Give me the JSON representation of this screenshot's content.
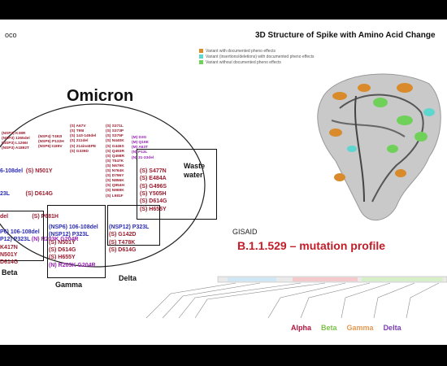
{
  "header": {
    "left_text": "oco"
  },
  "omicron_title": "Omicron",
  "omicron_small_cols": [
    [
      "(NSP3) K38R",
      "(NSP3) 1265del",
      "(NSP3) L1266I",
      "(NSP3) A1892T"
    ],
    [
      "(NSP4) T492I",
      "(NSP5) P132H",
      "(NSP6) I189V"
    ],
    [
      "(S) A67V",
      "(S) T95I",
      "(S) 143-145del",
      "(S) 211del",
      "(S) 214insEPE",
      "(S) G339D"
    ],
    [
      "(S) S371L",
      "(S) S373P",
      "(S) S375F",
      "(S) N440K",
      "(S) G446S",
      "(S) Q493R",
      "(S) Q498R",
      "(S) T547K",
      "(S) N679K",
      "(S) N764K",
      "(S) D796Y",
      "(S) N856K",
      "(S) Q954H",
      "(S) N969K",
      "(S) L981F"
    ],
    [
      "(M) D3G",
      "(M) Q19E",
      "(M) A63T",
      "(N) P13L",
      "(N) 31-33del"
    ]
  ],
  "omicron_cluster_left": [
    "6-108del",
    "(S) N501Y",
    "23L",
    "(S) D614G",
    "del",
    "(S) P681H",
    "(N) R203K G204R"
  ],
  "omicron_cluster_right": [
    "(S) S477N",
    "(S) E484A",
    "(S) G496S",
    "(S) Y505H",
    "(S) D614G",
    "(S) H655Y"
  ],
  "beta_lines": [
    "P6) 106-108del",
    "P12) P323L",
    "K417N",
    "N501Y",
    "D614G"
  ],
  "gamma_lines": [
    "(NSP6) 106-108del",
    "(NSP12) P323L",
    "(S) N501Y",
    "(S) D614G",
    "(S) H655Y",
    "(N) R203K G204R"
  ],
  "delta_lines": [
    "(NSP12) P323L",
    "(S) G142D",
    "(S) T478K",
    "(S) D614G"
  ],
  "labels": {
    "beta": "Beta",
    "gamma": "Gamma",
    "delta": "Delta",
    "waste": "Waste\nwater"
  },
  "structure": {
    "title": "3D Structure of Spike with Amino Acid Change",
    "legend": [
      {
        "text": "Variant with documented pheno effects",
        "color": "#d98a2b"
      },
      {
        "text": "Variant (insertions/deletions) with documented pheno effects",
        "color": "#5fd6cf"
      },
      {
        "text": "Variant without documented pheno effects",
        "color": "#6fd15a"
      }
    ]
  },
  "gisaid": "GISAID",
  "profile_title": "B.1.1.529 – mutation profile",
  "variant_legend": [
    {
      "name": "Alpha",
      "color": "#b3123b"
    },
    {
      "name": "Beta",
      "color": "#7cc04a"
    },
    {
      "name": "Gamma",
      "color": "#e39a52"
    },
    {
      "name": "Delta",
      "color": "#7a3bb0"
    }
  ]
}
